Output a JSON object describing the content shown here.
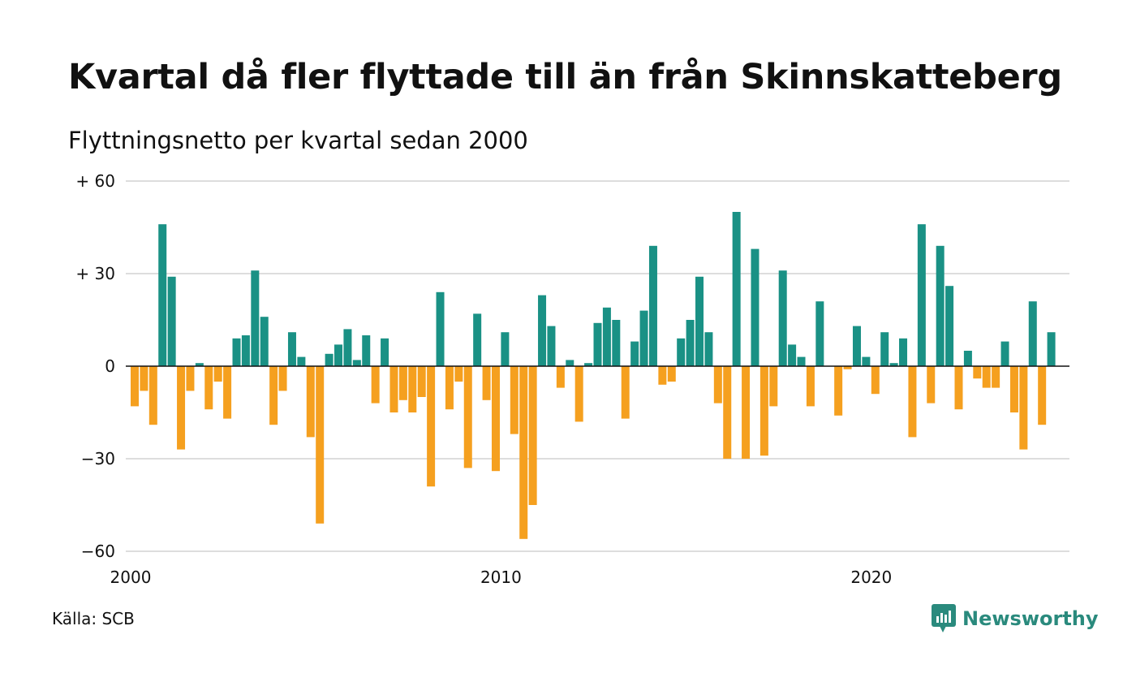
{
  "title": "Kvartal då fler flyttade till än från Skinnskatteberg",
  "subtitle": "Flyttningsnetto per kvartal sedan 2000",
  "source": "Källa: SCB",
  "brand": {
    "name": "Newsworthy",
    "icon": "newsworthy-logo-icon",
    "color": "#2a8a7d"
  },
  "colors": {
    "positive": "#1a9185",
    "negative": "#f5a01f",
    "grid": "#dddddd",
    "zero": "#111111"
  },
  "chart_data": {
    "type": "bar",
    "x_start": "2000 Q1",
    "x_ticks": [
      "2000",
      "2010",
      "2020"
    ],
    "y_ticks": [
      "+ 60",
      "+ 30",
      "0",
      "−30",
      "−60"
    ],
    "ylim": [
      -60,
      60
    ],
    "grid": true,
    "values": [
      -13,
      -8,
      -19,
      46,
      29,
      -27,
      -8,
      1,
      -14,
      -5,
      -17,
      9,
      10,
      31,
      16,
      -19,
      -8,
      11,
      3,
      -23,
      -51,
      4,
      7,
      12,
      2,
      10,
      -12,
      9,
      -15,
      -11,
      -15,
      -10,
      -39,
      24,
      -14,
      -5,
      -33,
      17,
      -11,
      -34,
      11,
      -22,
      -56,
      -45,
      23,
      13,
      -7,
      2,
      -18,
      1,
      14,
      19,
      15,
      -17,
      8,
      18,
      39,
      -6,
      -5,
      9,
      15,
      29,
      11,
      -12,
      -30,
      50,
      -30,
      38,
      -29,
      -13,
      31,
      7,
      3,
      -13,
      21,
      0,
      -16,
      -1,
      13,
      3,
      -9,
      11,
      1,
      9,
      -23,
      46,
      -12,
      39,
      26,
      -14,
      5,
      -4,
      -7,
      -7,
      8,
      -15,
      -27,
      21,
      -19,
      11
    ]
  }
}
